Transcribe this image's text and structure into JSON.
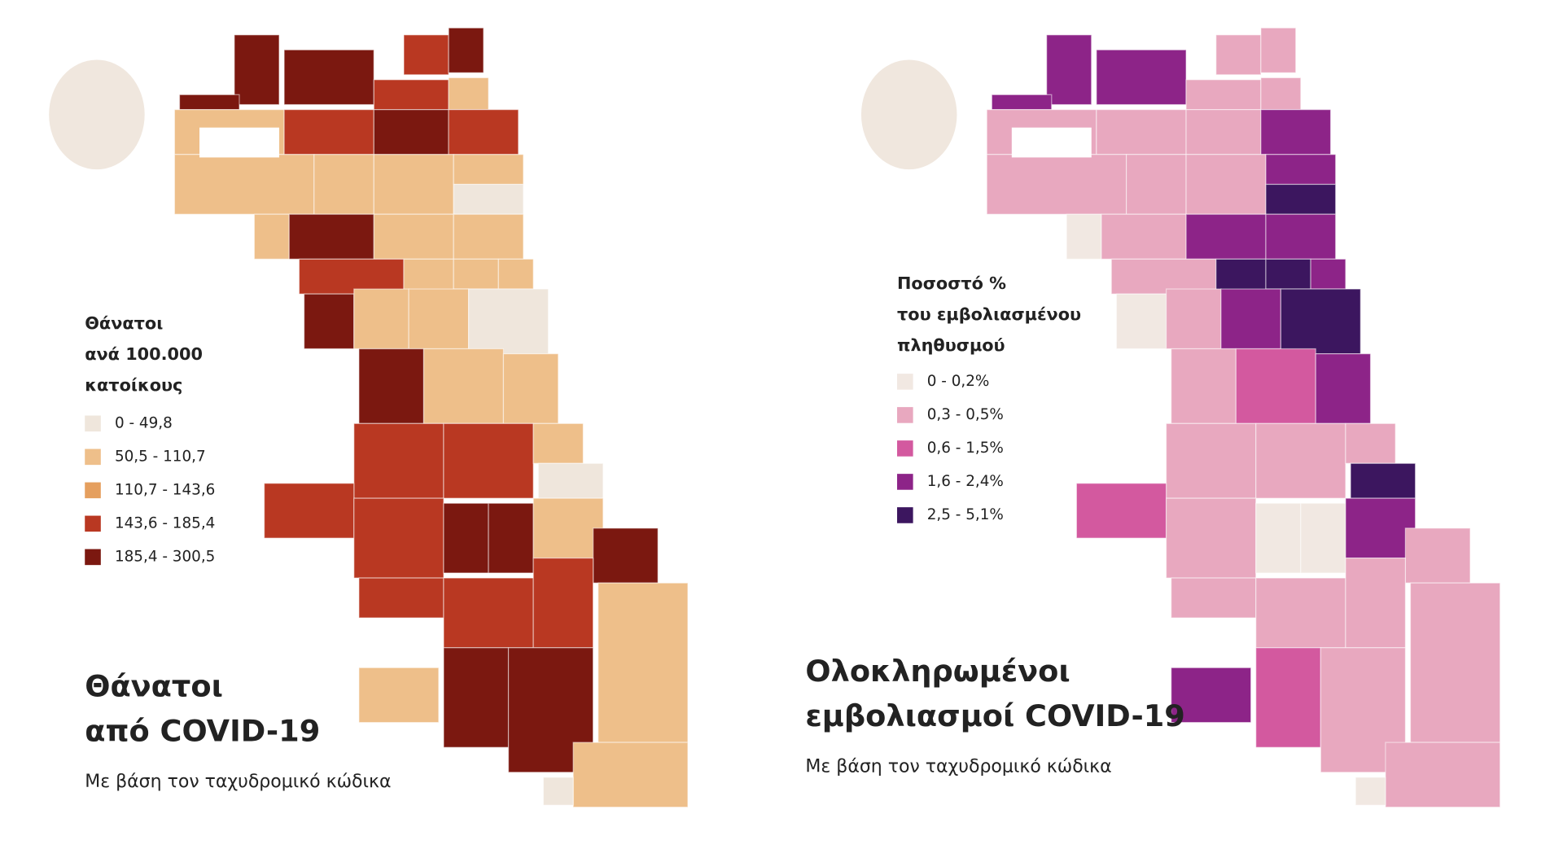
{
  "maps": [
    {
      "title": [
        "Θάνατοι",
        "από COVID-19"
      ],
      "subtitle": "Με βάση τον ταχυδρομικό κώδικα",
      "legend_title": [
        "Θάνατοι",
        "ανά 100.000",
        "κατοίκους"
      ],
      "legend": [
        {
          "label": "0 - 49,8",
          "color": "#efe6dc"
        },
        {
          "label": "50,5 - 110,7",
          "color": "#eebf8a"
        },
        {
          "label": "110,7 - 143,6",
          "color": "#e59f5e"
        },
        {
          "label": "143,6 - 185,4",
          "color": "#b93822"
        },
        {
          "label": "185,4 - 300,5",
          "color": "#7b1810"
        }
      ]
    },
    {
      "title": [
        "Ολοκληρωμένοι",
        "εμβολιασμοί COVID-19"
      ],
      "subtitle": "Με βάση τον ταχυδρομικό κώδικα",
      "legend_title": [
        "Ποσοστό %",
        "του εμβολιασμένου",
        "πληθυσμού"
      ],
      "legend": [
        {
          "label": "0 - 0,2%",
          "color": "#f1e8e2"
        },
        {
          "label": "0,3 - 0,5%",
          "color": "#e8a8bf"
        },
        {
          "label": "0,6 - 1,5%",
          "color": "#d3599f"
        },
        {
          "label": "1,6 - 2,4%",
          "color": "#8d2488"
        },
        {
          "label": "2,5 - 5,1%",
          "color": "#3c165f"
        }
      ]
    }
  ]
}
